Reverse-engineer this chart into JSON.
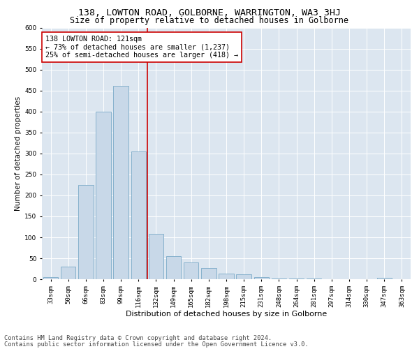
{
  "title1": "138, LOWTON ROAD, GOLBORNE, WARRINGTON, WA3 3HJ",
  "title2": "Size of property relative to detached houses in Golborne",
  "xlabel": "Distribution of detached houses by size in Golborne",
  "ylabel": "Number of detached properties",
  "categories": [
    "33sqm",
    "50sqm",
    "66sqm",
    "83sqm",
    "99sqm",
    "116sqm",
    "132sqm",
    "149sqm",
    "165sqm",
    "182sqm",
    "198sqm",
    "215sqm",
    "231sqm",
    "248sqm",
    "264sqm",
    "281sqm",
    "297sqm",
    "314sqm",
    "330sqm",
    "347sqm",
    "363sqm"
  ],
  "values": [
    5,
    30,
    225,
    400,
    462,
    305,
    108,
    55,
    40,
    27,
    13,
    11,
    5,
    2,
    2,
    2,
    0,
    0,
    0,
    3,
    0
  ],
  "bar_color": "#c8d8e8",
  "bar_edge_color": "#7aaac8",
  "bar_linewidth": 0.6,
  "vline_x": 5.5,
  "vline_color": "#cc0000",
  "annotation_text": "138 LOWTON ROAD: 121sqm\n← 73% of detached houses are smaller (1,237)\n25% of semi-detached houses are larger (418) →",
  "annotation_box_color": "#ffffff",
  "annotation_box_edge": "#cc0000",
  "ylim": [
    0,
    600
  ],
  "yticks": [
    0,
    50,
    100,
    150,
    200,
    250,
    300,
    350,
    400,
    450,
    500,
    550,
    600
  ],
  "bg_color": "#dce6f0",
  "footer1": "Contains HM Land Registry data © Crown copyright and database right 2024.",
  "footer2": "Contains public sector information licensed under the Open Government Licence v3.0.",
  "title1_fontsize": 9.5,
  "title2_fontsize": 8.5,
  "xlabel_fontsize": 8,
  "ylabel_fontsize": 7.5,
  "tick_fontsize": 6.5,
  "annotation_fontsize": 7.2,
  "footer_fontsize": 6.2
}
